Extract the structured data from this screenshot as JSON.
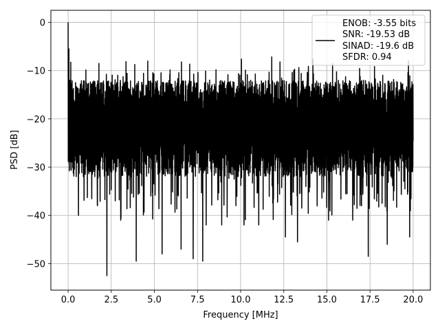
{
  "chart_data": {
    "type": "line",
    "xlabel": "Frequency [MHz]",
    "ylabel": "PSD [dB]",
    "xlim": [
      -1.0,
      21.0
    ],
    "ylim": [
      -55.5,
      2.5
    ],
    "xticks": [
      0.0,
      2.5,
      5.0,
      7.5,
      10.0,
      12.5,
      15.0,
      17.5,
      20.0
    ],
    "xtick_labels": [
      "0.0",
      "2.5",
      "5.0",
      "7.5",
      "10.0",
      "12.5",
      "15.0",
      "17.5",
      "20.0"
    ],
    "yticks": [
      0,
      -10,
      -20,
      -30,
      -40,
      -50
    ],
    "ytick_labels": [
      "0",
      "−10",
      "−20",
      "−30",
      "−40",
      "−50"
    ],
    "grid": true,
    "legend": {
      "placement": "top-right",
      "lines": [
        "ENOB: -3.55 bits",
        "SNR: -19.53 dB",
        "SINAD: -19.6 dB",
        "SFDR: 0.94"
      ]
    },
    "series": [
      {
        "color": "#000000",
        "x_range": [
          0.0,
          20.0
        ],
        "noise_floor_mean": -22,
        "noise_upper_typical": -12,
        "noise_lower_typical": -32,
        "peaks": [
          [
            0.0,
            0.0
          ],
          [
            0.05,
            -5.5
          ],
          [
            0.1,
            -12
          ],
          [
            0.25,
            -14
          ]
        ],
        "dips": [
          [
            0.6,
            -40
          ],
          [
            1.7,
            -38
          ],
          [
            2.25,
            -52.5
          ],
          [
            3.05,
            -41
          ],
          [
            3.95,
            -49.5
          ],
          [
            5.45,
            -48
          ],
          [
            6.55,
            -47
          ],
          [
            7.25,
            -49
          ],
          [
            7.8,
            -49.5
          ],
          [
            8.0,
            -42
          ],
          [
            8.9,
            -42
          ],
          [
            10.2,
            -42
          ],
          [
            11.05,
            -42
          ],
          [
            12.6,
            -44.5
          ],
          [
            13.3,
            -45.5
          ],
          [
            15.1,
            -41
          ],
          [
            16.5,
            -41
          ],
          [
            17.4,
            -48.5
          ],
          [
            18.5,
            -46
          ],
          [
            19.8,
            -44.5
          ]
        ]
      }
    ]
  }
}
